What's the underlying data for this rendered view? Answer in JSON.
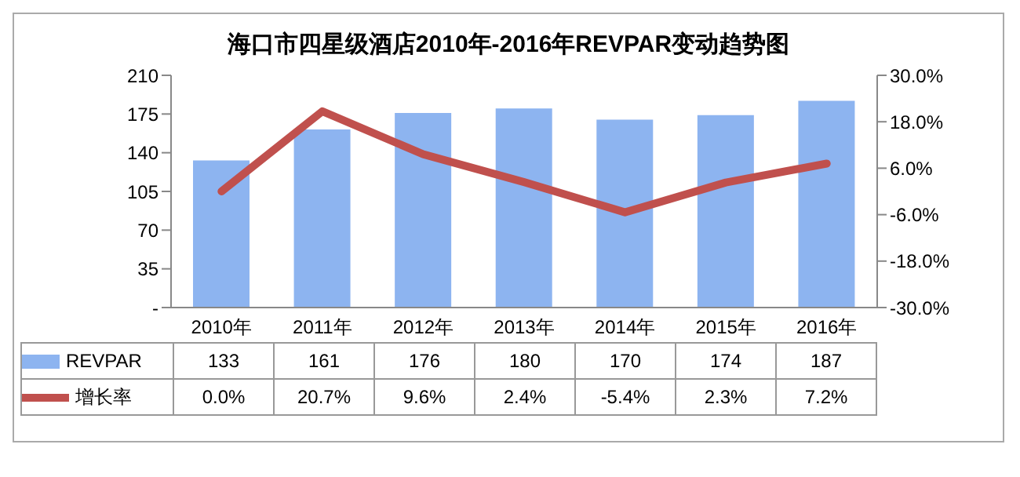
{
  "chart_data": {
    "type": "bar",
    "title": "海口市四星级酒店2010年-2016年REVPAR变动趋势图",
    "categories": [
      "2010年",
      "2011年",
      "2012年",
      "2013年",
      "2014年",
      "2015年",
      "2016年"
    ],
    "series": [
      {
        "name": "REVPAR",
        "color": "#8db4f0",
        "values": [
          133,
          161,
          176,
          180,
          170,
          174,
          187
        ],
        "value_labels": [
          "133",
          "161",
          "176",
          "180",
          "170",
          "174",
          "187"
        ]
      },
      {
        "name": "增长率",
        "type": "line",
        "axis": "y2",
        "color": "#c0504d",
        "values": [
          0.0,
          20.7,
          9.6,
          2.4,
          -5.4,
          2.3,
          7.2
        ],
        "value_labels": [
          "0.0%",
          "20.7%",
          "9.6%",
          "2.4%",
          "-5.4%",
          "2.3%",
          "7.2%"
        ]
      }
    ],
    "ylim": [
      0,
      210
    ],
    "yticks": [
      {
        "value": 0,
        "label": "-"
      },
      35,
      70,
      105,
      140,
      175,
      210
    ],
    "y2lim": [
      -30,
      30
    ],
    "y2ticks": [
      {
        "value": -30,
        "label": "-30.0%"
      },
      {
        "value": -18,
        "label": "-18.0%"
      },
      {
        "value": -6,
        "label": "-6.0%"
      },
      {
        "value": 6,
        "label": "6.0%"
      },
      {
        "value": 18,
        "label": "18.0%"
      },
      {
        "value": 30,
        "label": "30.0%"
      }
    ],
    "legend": "bottom",
    "marker": "none",
    "line_style": "solid"
  }
}
